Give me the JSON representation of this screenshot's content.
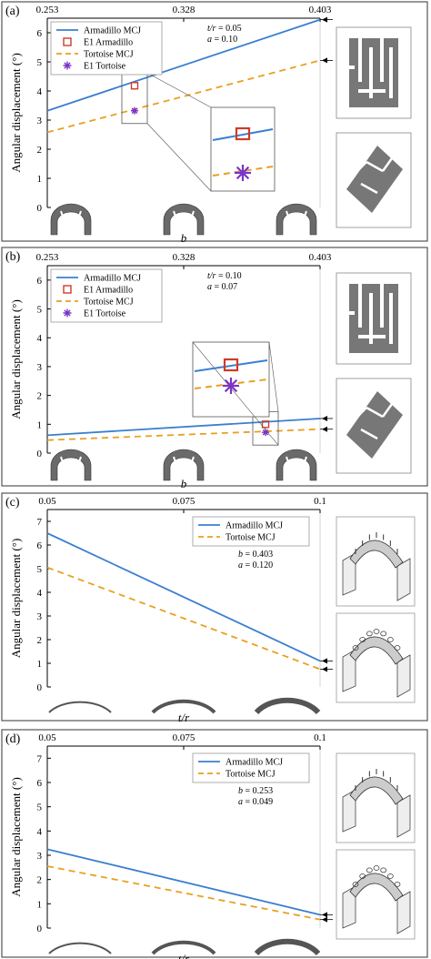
{
  "chart_data": [
    {
      "panel_label": "(a)",
      "type": "line",
      "ylabel": "Angular displacement (°)",
      "xlabel": "b",
      "x_top_ticks": [
        "0.253",
        "0.328",
        "0.403"
      ],
      "yticks": [
        "0",
        "1",
        "2",
        "3",
        "4",
        "5",
        "6"
      ],
      "ylim": [
        0,
        6.5
      ],
      "xlim": [
        0.253,
        0.403
      ],
      "grid": false,
      "legend_position": "top-left",
      "legend": [
        "Armadillo MCJ",
        "E1 Armadillo",
        "Tortoise MCJ",
        "E1 Tortoise"
      ],
      "params": [
        {
          "name": "t/r",
          "value": "0.05"
        },
        {
          "name": "a",
          "value": "0.10"
        }
      ],
      "series": [
        {
          "name": "Armadillo MCJ",
          "kind": "line",
          "x": [
            0.253,
            0.403
          ],
          "y": [
            3.32,
            6.45
          ]
        },
        {
          "name": "E1 Armadillo",
          "kind": "marker-square",
          "x": [
            0.301
          ],
          "y": [
            4.18
          ]
        },
        {
          "name": "Tortoise MCJ",
          "kind": "dashed-line",
          "x": [
            0.253,
            0.403
          ],
          "y": [
            2.58,
            5.05
          ]
        },
        {
          "name": "E1 Tortoise",
          "kind": "marker-star",
          "x": [
            0.301
          ],
          "y": [
            3.32
          ]
        }
      ]
    },
    {
      "panel_label": "(b)",
      "type": "line",
      "ylabel": "Angular displacement (°)",
      "xlabel": "b",
      "x_top_ticks": [
        "0.253",
        "0.328",
        "0.403"
      ],
      "yticks": [
        "0",
        "1",
        "2",
        "3",
        "4",
        "5",
        "6"
      ],
      "ylim": [
        0,
        6.5
      ],
      "xlim": [
        0.253,
        0.403
      ],
      "grid": false,
      "legend_position": "top-left",
      "legend": [
        "Armadillo MCJ",
        "E1 Armadillo",
        "Tortoise MCJ",
        "E1 Tortoise"
      ],
      "params": [
        {
          "name": "t/r",
          "value": "0.10"
        },
        {
          "name": "a",
          "value": "0.07"
        }
      ],
      "series": [
        {
          "name": "Armadillo MCJ",
          "kind": "line",
          "x": [
            0.253,
            0.403
          ],
          "y": [
            0.62,
            1.2
          ]
        },
        {
          "name": "E1 Armadillo",
          "kind": "marker-square",
          "x": [
            0.373
          ],
          "y": [
            1.0
          ]
        },
        {
          "name": "Tortoise MCJ",
          "kind": "dashed-line",
          "x": [
            0.253,
            0.403
          ],
          "y": [
            0.45,
            0.83
          ]
        },
        {
          "name": "E1 Tortoise",
          "kind": "marker-star",
          "x": [
            0.373
          ],
          "y": [
            0.72
          ]
        }
      ]
    },
    {
      "panel_label": "(c)",
      "type": "line",
      "ylabel": "Angular displacement (°)",
      "xlabel": "t/r",
      "x_top_ticks": [
        "0.05",
        "0.075",
        "0.1"
      ],
      "yticks": [
        "0",
        "1",
        "2",
        "3",
        "4",
        "5",
        "6",
        "7"
      ],
      "ylim": [
        0,
        7.5
      ],
      "xlim": [
        0.05,
        0.1
      ],
      "grid": false,
      "legend_position": "top-right",
      "legend": [
        "Armadillo MCJ",
        "Tortoise MCJ"
      ],
      "params": [
        {
          "name": "b",
          "value": "0.403"
        },
        {
          "name": "a",
          "value": "0.120"
        }
      ],
      "series": [
        {
          "name": "Armadillo MCJ",
          "kind": "line",
          "x": [
            0.05,
            0.1
          ],
          "y": [
            6.5,
            1.1
          ]
        },
        {
          "name": "Tortoise MCJ",
          "kind": "dashed-line",
          "x": [
            0.05,
            0.1
          ],
          "y": [
            5.05,
            0.75
          ]
        }
      ]
    },
    {
      "panel_label": "(d)",
      "type": "line",
      "ylabel": "Angular displacement (°)",
      "xlabel": "t/r",
      "x_top_ticks": [
        "0.05",
        "0.075",
        "0.1"
      ],
      "yticks": [
        "0",
        "1",
        "2",
        "3",
        "4",
        "5",
        "6",
        "7"
      ],
      "ylim": [
        0,
        7.5
      ],
      "xlim": [
        0.05,
        0.1
      ],
      "grid": false,
      "legend_position": "top-right",
      "legend": [
        "Armadillo MCJ",
        "Tortoise MCJ"
      ],
      "params": [
        {
          "name": "b",
          "value": "0.253"
        },
        {
          "name": "a",
          "value": "0.049"
        }
      ],
      "series": [
        {
          "name": "Armadillo MCJ",
          "kind": "line",
          "x": [
            0.05,
            0.1
          ],
          "y": [
            3.25,
            0.55
          ]
        },
        {
          "name": "Tortoise MCJ",
          "kind": "dashed-line",
          "x": [
            0.05,
            0.1
          ],
          "y": [
            2.55,
            0.35
          ]
        }
      ]
    }
  ],
  "colors": {
    "armadillo": "#3a7fd0",
    "tortoise": "#e8a020",
    "e1_armadillo": "#d03a2a",
    "e1_tortoise": "#7a34c8",
    "panel_border": "#555555",
    "inset_fill": "#777777"
  },
  "icons": [
    "arc-segment-icon",
    "slotted-pattern-icon",
    "hexagon-pattern-icon",
    "cylinder-joint-icon"
  ]
}
